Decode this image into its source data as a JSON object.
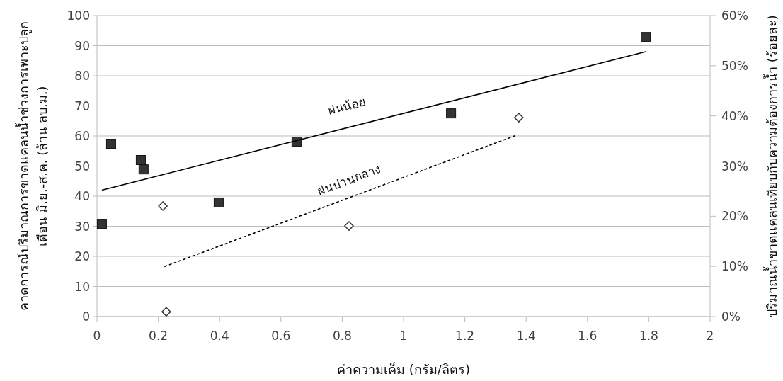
{
  "chart_data": {
    "type": "scatter",
    "xlabel": "ค่าความเค็ม (กรัม/ลิตร)",
    "ylabel": "คาดการณ์ปริมาณการขาดแคลนน้ำช่วงการเพาะปลูก\nเดือน มิ.ย.-ส.ค. (ล้าน ลบ.ม.)",
    "y2label": "ปริมาณน้ำขาดแคลนเทียบกับความต้องการน้ำ (ร้อยละ)",
    "xlim": [
      0,
      2
    ],
    "xticks": [
      0,
      0.2,
      0.4,
      0.6,
      0.8,
      1,
      1.2,
      1.4,
      1.6,
      1.8,
      2
    ],
    "ylim": [
      0,
      100
    ],
    "yticks": [
      0,
      10,
      20,
      30,
      40,
      50,
      60,
      70,
      80,
      90,
      100
    ],
    "y2lim": [
      0,
      60
    ],
    "y2ticks": [
      {
        "value": 0,
        "label": "0%"
      },
      {
        "value": 10,
        "label": "10%"
      },
      {
        "value": 20,
        "label": "20%"
      },
      {
        "value": 30,
        "label": "30%"
      },
      {
        "value": 40,
        "label": "40%"
      },
      {
        "value": 50,
        "label": "50%"
      },
      {
        "value": 60,
        "label": "60%"
      }
    ],
    "grid": "y",
    "series": [
      {
        "type": "scatter",
        "marker": "square",
        "color": "#333333",
        "x": [
          0.016,
          0.046,
          0.143,
          0.152,
          0.397,
          0.651,
          1.155,
          1.79
        ],
        "values": [
          30.8,
          57.4,
          52.0,
          48.9,
          37.9,
          58.1,
          67.5,
          92.9
        ]
      },
      {
        "type": "scatter",
        "marker": "diamond",
        "color": "#ffffff",
        "x": [
          0.215,
          0.226,
          0.822,
          1.376
        ],
        "values": [
          36.7,
          1.6,
          30.1,
          66.1
        ]
      },
      {
        "type": "line",
        "line_style": "solid",
        "color": "#000000",
        "x": [
          0.016,
          1.79
        ],
        "values": [
          42,
          88
        ]
      },
      {
        "type": "line",
        "line_style": "dashed",
        "color": "#000000",
        "x": [
          0.22,
          1.37
        ],
        "values": [
          16.6,
          60.3
        ]
      }
    ],
    "annotations": [
      "ฝนน้อย",
      "ฝนปานกลาง"
    ]
  }
}
